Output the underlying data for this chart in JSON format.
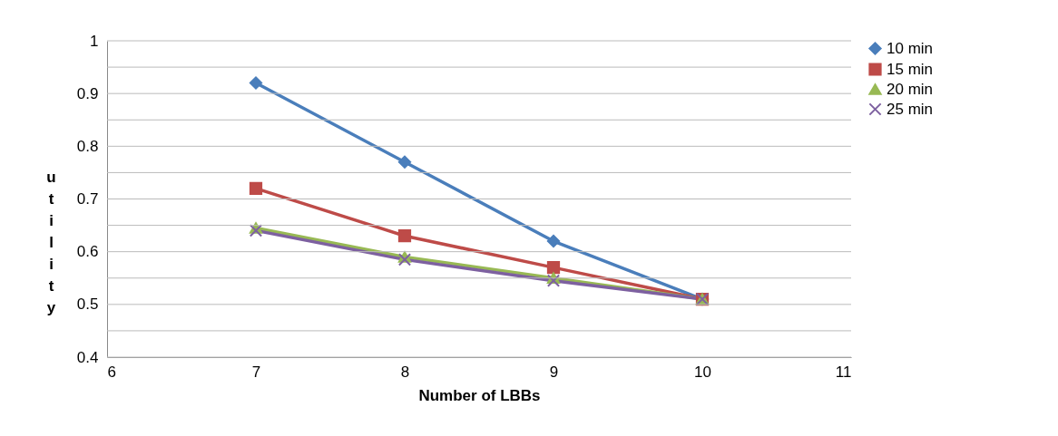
{
  "chart_data": {
    "type": "line",
    "xlabel": "Number of LBBs",
    "ylabel": "utility",
    "x": [
      7,
      8,
      9,
      10
    ],
    "series": [
      {
        "name": "10 min",
        "color": "#4a7ebb",
        "marker": "diamond",
        "values": [
          0.92,
          0.77,
          0.62,
          0.51
        ]
      },
      {
        "name": "15 min",
        "color": "#be4b48",
        "marker": "square",
        "values": [
          0.72,
          0.63,
          0.57,
          0.51
        ]
      },
      {
        "name": "20 min",
        "color": "#98b954",
        "marker": "triangle",
        "values": [
          0.645,
          0.59,
          0.55,
          0.51
        ]
      },
      {
        "name": "25 min",
        "color": "#7d60a0",
        "marker": "cross",
        "values": [
          0.64,
          0.585,
          0.545,
          0.51
        ]
      }
    ],
    "xlim": [
      6,
      11
    ],
    "xticks": [
      6,
      7,
      8,
      9,
      10,
      11
    ],
    "ylim": [
      0.4,
      1
    ],
    "yticks": [
      0.4,
      {
        "value": 0.45,
        "label": null
      },
      0.5,
      {
        "value": 0.55,
        "label": null
      },
      0.6,
      {
        "value": 0.65,
        "label": null
      },
      0.7,
      {
        "value": 0.75,
        "label": null
      },
      0.8,
      {
        "value": 0.85,
        "label": null
      },
      0.9,
      {
        "value": 0.95,
        "label": null
      },
      1
    ],
    "grid": "y",
    "legend": "right",
    "line_style": "solid"
  }
}
